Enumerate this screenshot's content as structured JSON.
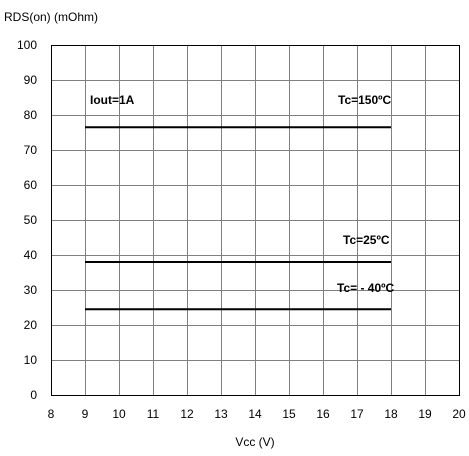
{
  "chart_data": {
    "type": "line",
    "ylabel": "RDS(on) (mOhm)",
    "xlabel": "Vcc (V)",
    "xlim": [
      8,
      20
    ],
    "ylim": [
      0,
      100
    ],
    "xticks": [
      "8",
      "9",
      "10",
      "11",
      "12",
      "13",
      "14",
      "15",
      "16",
      "17",
      "18",
      "19",
      "20"
    ],
    "yticks": [
      "0",
      "10",
      "20",
      "30",
      "40",
      "50",
      "60",
      "70",
      "80",
      "90",
      "100"
    ],
    "grid": true,
    "annotations": [
      "Iout=1A"
    ],
    "series": [
      {
        "name": "Tc=150ºC",
        "x": [
          9,
          18
        ],
        "y": [
          76.5,
          76.5
        ]
      },
      {
        "name": "Tc=25ºC",
        "x": [
          9,
          18
        ],
        "y": [
          38,
          38
        ]
      },
      {
        "name": "Tc= - 40ºC",
        "x": [
          9,
          18
        ],
        "y": [
          24.5,
          24.5
        ]
      }
    ],
    "colors": {
      "line": "#000000",
      "grid": "#808080",
      "frame": "#000000"
    }
  }
}
